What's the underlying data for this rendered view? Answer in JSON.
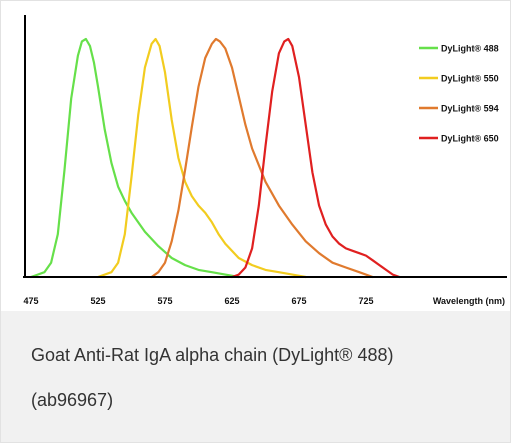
{
  "chart_data": {
    "type": "line",
    "title": "",
    "xlabel": "Wavelength (nm)",
    "ylabel": "",
    "xlim": [
      475,
      760
    ],
    "ylim": [
      0,
      1
    ],
    "x_ticks": [
      475,
      525,
      575,
      625,
      675,
      725
    ],
    "grid": false,
    "legend_position": "top-right",
    "series": [
      {
        "name": "DyLight® 488",
        "color": "#66e04a",
        "x": [
          475,
          480,
          485,
          490,
          495,
          500,
          505,
          510,
          513,
          516,
          519,
          522,
          525,
          530,
          535,
          540,
          545,
          550,
          560,
          570,
          580,
          590,
          600,
          610,
          620,
          630
        ],
        "y": [
          0.0,
          0.01,
          0.02,
          0.06,
          0.18,
          0.45,
          0.75,
          0.93,
          0.99,
          1.0,
          0.97,
          0.9,
          0.8,
          0.62,
          0.48,
          0.38,
          0.32,
          0.27,
          0.19,
          0.13,
          0.08,
          0.05,
          0.03,
          0.02,
          0.01,
          0.0
        ]
      },
      {
        "name": "DyLight® 550",
        "color": "#f2cc1f",
        "x": [
          525,
          535,
          540,
          545,
          550,
          555,
          560,
          565,
          568,
          571,
          575,
          580,
          585,
          590,
          595,
          600,
          605,
          610,
          615,
          620,
          630,
          640,
          650,
          660,
          670,
          680
        ],
        "y": [
          0.0,
          0.02,
          0.06,
          0.18,
          0.42,
          0.68,
          0.88,
          0.98,
          1.0,
          0.97,
          0.86,
          0.66,
          0.5,
          0.4,
          0.34,
          0.3,
          0.27,
          0.23,
          0.18,
          0.14,
          0.08,
          0.05,
          0.03,
          0.02,
          0.01,
          0.0
        ]
      },
      {
        "name": "DyLight® 594",
        "color": "#e07a2e",
        "x": [
          565,
          570,
          575,
          580,
          585,
          590,
          595,
          600,
          605,
          610,
          613,
          616,
          620,
          625,
          630,
          635,
          640,
          650,
          660,
          670,
          680,
          690,
          700,
          710,
          720,
          730
        ],
        "y": [
          0.0,
          0.02,
          0.06,
          0.15,
          0.28,
          0.45,
          0.63,
          0.8,
          0.92,
          0.98,
          1.0,
          0.99,
          0.96,
          0.88,
          0.76,
          0.64,
          0.54,
          0.4,
          0.3,
          0.22,
          0.15,
          0.1,
          0.06,
          0.04,
          0.02,
          0.0
        ]
      },
      {
        "name": "DyLight® 650",
        "color": "#e02020",
        "x": [
          625,
          630,
          635,
          640,
          645,
          650,
          655,
          660,
          664,
          667,
          670,
          675,
          680,
          685,
          690,
          695,
          700,
          705,
          710,
          715,
          720,
          725,
          730,
          735,
          740,
          745,
          750
        ],
        "y": [
          0.0,
          0.01,
          0.04,
          0.12,
          0.3,
          0.55,
          0.78,
          0.94,
          0.99,
          1.0,
          0.97,
          0.84,
          0.64,
          0.44,
          0.3,
          0.22,
          0.17,
          0.14,
          0.12,
          0.11,
          0.1,
          0.09,
          0.07,
          0.05,
          0.03,
          0.01,
          0.0
        ]
      }
    ]
  },
  "caption": {
    "line1": "Goat Anti-Rat IgA alpha chain (DyLight® 488)",
    "line2": "(ab96967)"
  }
}
